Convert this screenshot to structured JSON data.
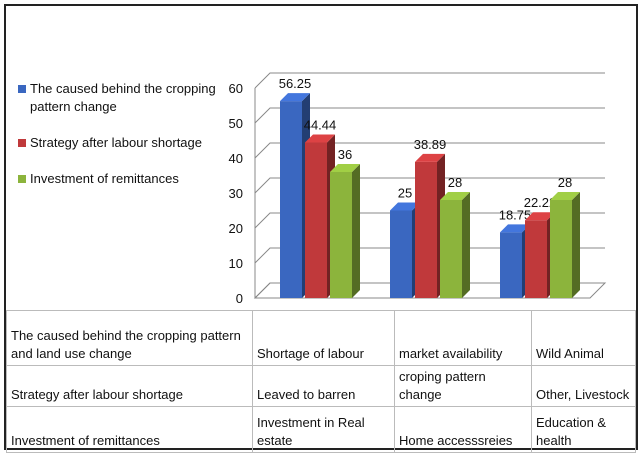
{
  "chart_data": {
    "type": "bar",
    "categories": [
      null,
      null,
      null
    ],
    "series": [
      {
        "name": "The caused behind the cropping pattern change",
        "color": "#3a67c0",
        "values": [
          56.25,
          25,
          18.75
        ]
      },
      {
        "name": "Strategy after labour shortage",
        "color": "#c0393b",
        "values": [
          44.44,
          38.89,
          22.22
        ]
      },
      {
        "name": "Investment of remittances",
        "color": "#8cb43c",
        "values": [
          36,
          28,
          28
        ]
      }
    ],
    "ylim": [
      0,
      60
    ],
    "yticks": [
      0,
      10,
      20,
      30,
      40,
      50,
      60
    ],
    "grid": true,
    "legend": "left",
    "data_labels": true
  },
  "table": {
    "rows": [
      [
        "The caused behind the cropping pattern and land use change",
        "Shortage of labour",
        "market availability",
        "Wild Animal"
      ],
      [
        "Strategy after labour shortage",
        "Leaved to barren",
        "croping pattern change",
        "Other, Livestock"
      ],
      [
        "Investment of remittances",
        "Investment in Real estate",
        "Home accesssreies",
        "Education & health"
      ]
    ]
  }
}
